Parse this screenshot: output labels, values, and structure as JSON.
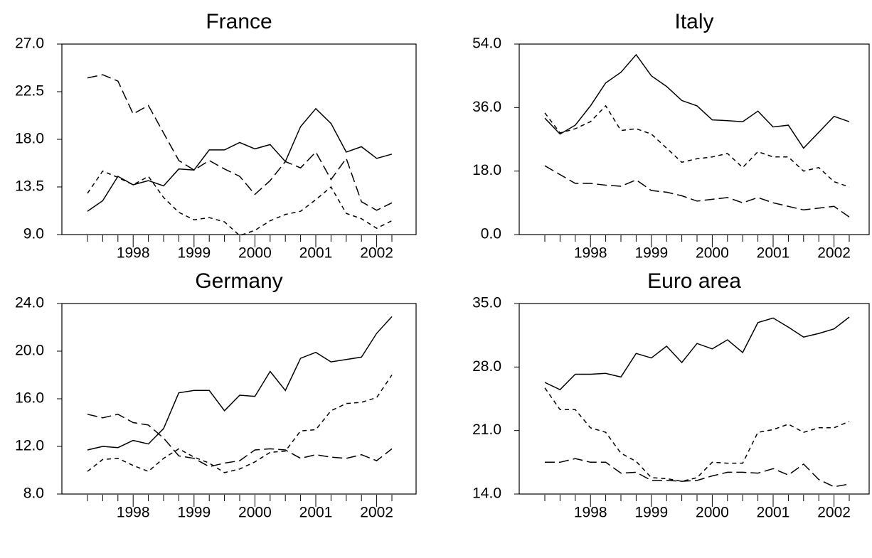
{
  "chart_data": [
    {
      "type": "line",
      "title": "France",
      "categories": [
        null,
        null,
        null,
        "1998",
        null,
        null,
        null,
        "1999",
        null,
        null,
        null,
        "2000",
        null,
        null,
        null,
        "2001",
        null,
        null,
        null,
        "2002",
        null
      ],
      "ylim": [
        9,
        27
      ],
      "yticks": [
        {
          "value": 9,
          "label": "9.0"
        },
        {
          "value": 13.5,
          "label": "13.5"
        },
        {
          "value": 18,
          "label": "18.0"
        },
        {
          "value": 22.5,
          "label": "22.5"
        },
        {
          "value": 27,
          "label": "27.0"
        }
      ],
      "series": [
        {
          "color": "#000000",
          "dash": "solid",
          "values": [
            11.2,
            12.2,
            14.5,
            13.7,
            14.1,
            13.6,
            15.2,
            15.1,
            17.0,
            17.0,
            17.7,
            17.1,
            17.5,
            15.9,
            19.2,
            20.9,
            19.5,
            16.8,
            17.3,
            16.2,
            16.6
          ]
        },
        {
          "color": "#000000",
          "dash": "long",
          "values": [
            23.8,
            24.1,
            23.5,
            20.4,
            21.2,
            18.6,
            16.0,
            15.1,
            16.0,
            15.2,
            14.5,
            12.8,
            14.1,
            15.9,
            15.3,
            16.8,
            14.2,
            16.2,
            12.1,
            11.3,
            12.0
          ]
        },
        {
          "color": "#000000",
          "dash": "short",
          "values": [
            12.9,
            15.0,
            14.4,
            13.7,
            14.5,
            12.5,
            11.1,
            10.4,
            10.6,
            10.2,
            8.9,
            9.4,
            10.3,
            10.9,
            11.2,
            12.3,
            13.5,
            11.0,
            10.5,
            9.6,
            10.3
          ]
        }
      ]
    },
    {
      "type": "line",
      "title": "Italy",
      "categories": [
        null,
        null,
        null,
        "1998",
        null,
        null,
        null,
        "1999",
        null,
        null,
        null,
        "2000",
        null,
        null,
        null,
        "2001",
        null,
        null,
        null,
        "2002",
        null
      ],
      "ylim": [
        0,
        54
      ],
      "yticks": [
        {
          "value": 0,
          "label": "0.0"
        },
        {
          "value": 18,
          "label": "18.0"
        },
        {
          "value": 36,
          "label": "36.0"
        },
        {
          "value": 54,
          "label": "54.0"
        }
      ],
      "series": [
        {
          "color": "#000000",
          "dash": "solid",
          "values": [
            33,
            28.5,
            31,
            36.5,
            43,
            46,
            51,
            45,
            42,
            38,
            36.5,
            32.5,
            32.3,
            32,
            35,
            30.5,
            31,
            24.5,
            29,
            33.5,
            32
          ]
        },
        {
          "color": "#000000",
          "dash": "short",
          "values": [
            34.5,
            28.8,
            30,
            32,
            36.5,
            29.5,
            30,
            28.5,
            24.5,
            20.5,
            21.5,
            22,
            23,
            19,
            23.5,
            22,
            22,
            18,
            19,
            15,
            13.5
          ]
        },
        {
          "color": "#000000",
          "dash": "long",
          "values": [
            19.5,
            17,
            14.5,
            14.5,
            14,
            13.7,
            15.5,
            12.5,
            12,
            11,
            9.5,
            10,
            10.5,
            9,
            10.5,
            9,
            8,
            7,
            7.5,
            8,
            5
          ]
        }
      ]
    },
    {
      "type": "line",
      "title": "Germany",
      "categories": [
        null,
        null,
        null,
        "1998",
        null,
        null,
        null,
        "1999",
        null,
        null,
        null,
        "2000",
        null,
        null,
        null,
        "2001",
        null,
        null,
        null,
        "2002",
        null
      ],
      "ylim": [
        8,
        24
      ],
      "yticks": [
        {
          "value": 8,
          "label": "8.0"
        },
        {
          "value": 12,
          "label": "12.0"
        },
        {
          "value": 16,
          "label": "16.0"
        },
        {
          "value": 20,
          "label": "20.0"
        },
        {
          "value": 24,
          "label": "24.0"
        }
      ],
      "series": [
        {
          "color": "#000000",
          "dash": "solid",
          "values": [
            11.7,
            12.0,
            11.9,
            12.5,
            12.2,
            13.5,
            16.5,
            16.7,
            16.7,
            15.0,
            16.3,
            16.2,
            18.3,
            16.7,
            19.4,
            19.9,
            19.1,
            19.3,
            19.5,
            21.5,
            22.9
          ]
        },
        {
          "color": "#000000",
          "dash": "long",
          "values": [
            14.7,
            14.4,
            14.7,
            14.0,
            13.8,
            12.7,
            11.2,
            11.0,
            10.3,
            10.6,
            10.8,
            11.7,
            11.8,
            11.7,
            11.0,
            11.3,
            11.1,
            11.0,
            11.3,
            10.8,
            11.8
          ]
        },
        {
          "color": "#000000",
          "dash": "short",
          "values": [
            9.9,
            10.9,
            11.0,
            10.4,
            9.9,
            11.0,
            11.8,
            11.1,
            10.6,
            9.8,
            10.1,
            10.7,
            11.5,
            11.6,
            13.3,
            13.4,
            15.0,
            15.6,
            15.7,
            16.1,
            18.0
          ]
        }
      ]
    },
    {
      "type": "line",
      "title": "Euro area",
      "categories": [
        null,
        null,
        null,
        "1998",
        null,
        null,
        null,
        "1999",
        null,
        null,
        null,
        "2000",
        null,
        null,
        null,
        "2001",
        null,
        null,
        null,
        "2002",
        null
      ],
      "ylim": [
        14,
        35
      ],
      "yticks": [
        {
          "value": 14,
          "label": "14.0"
        },
        {
          "value": 21,
          "label": "21.0"
        },
        {
          "value": 28,
          "label": "28.0"
        },
        {
          "value": 35,
          "label": "35.0"
        }
      ],
      "series": [
        {
          "color": "#000000",
          "dash": "solid",
          "values": [
            26.3,
            25.5,
            27.2,
            27.2,
            27.3,
            26.9,
            29.5,
            29.0,
            30.3,
            28.5,
            30.6,
            30.0,
            31.0,
            29.6,
            32.9,
            33.4,
            32.4,
            31.3,
            31.7,
            32.2,
            33.5
          ]
        },
        {
          "color": "#000000",
          "dash": "short",
          "values": [
            25.7,
            23.3,
            23.3,
            21.3,
            20.8,
            18.5,
            17.6,
            15.8,
            15.7,
            15.4,
            15.8,
            17.5,
            17.4,
            17.4,
            20.8,
            21.1,
            21.7,
            20.8,
            21.3,
            21.3,
            22.0
          ]
        },
        {
          "color": "#000000",
          "dash": "long",
          "values": [
            17.5,
            17.5,
            17.9,
            17.5,
            17.5,
            16.3,
            16.4,
            15.5,
            15.5,
            15.4,
            15.5,
            16.0,
            16.4,
            16.4,
            16.3,
            16.8,
            16.1,
            17.3,
            15.6,
            14.8,
            15.1
          ]
        }
      ]
    }
  ]
}
